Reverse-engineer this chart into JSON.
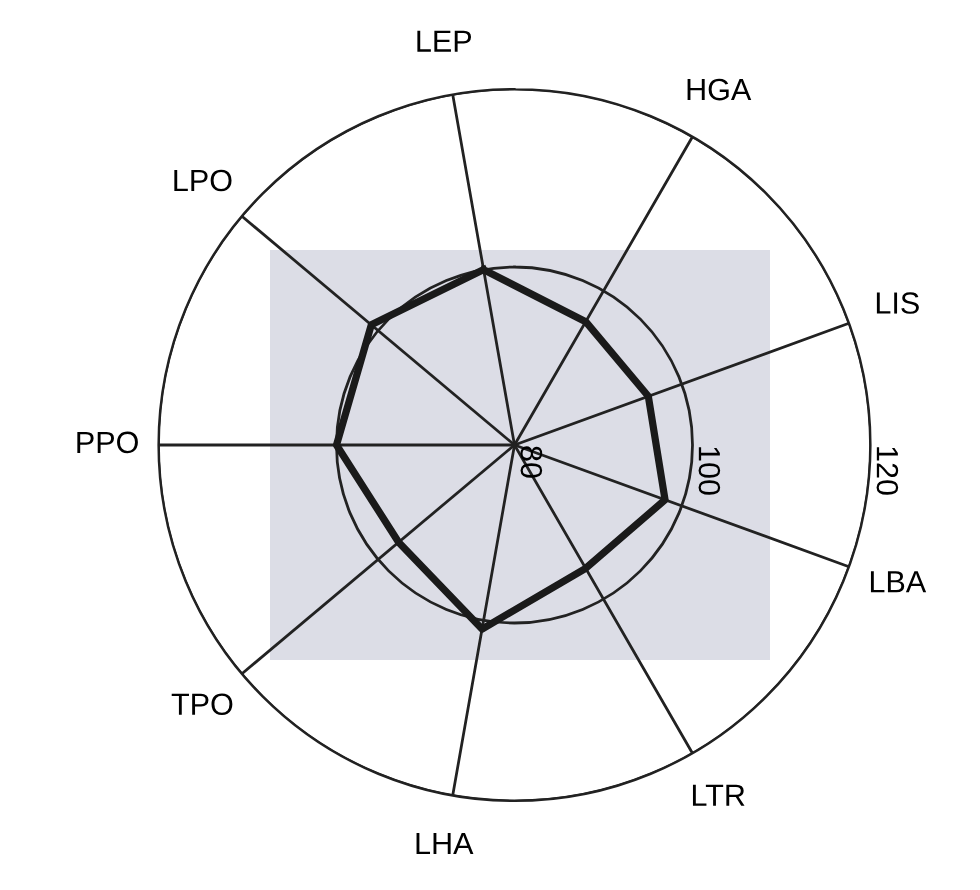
{
  "chart_data": {
    "type": "radar",
    "categories": [
      "LEP",
      "HGA",
      "LIS",
      "LBA",
      "LTR",
      "LHA",
      "TPO",
      "PPO",
      "LPO"
    ],
    "series": [
      {
        "color": "#1a1a1a",
        "values": [
          100,
          96,
          96,
          98,
          96,
          101,
          97,
          100,
          101
        ]
      }
    ],
    "ylim": [
      80,
      120
    ],
    "yticks": [
      80,
      100,
      120
    ],
    "grid": true,
    "line_style": "solid"
  }
}
